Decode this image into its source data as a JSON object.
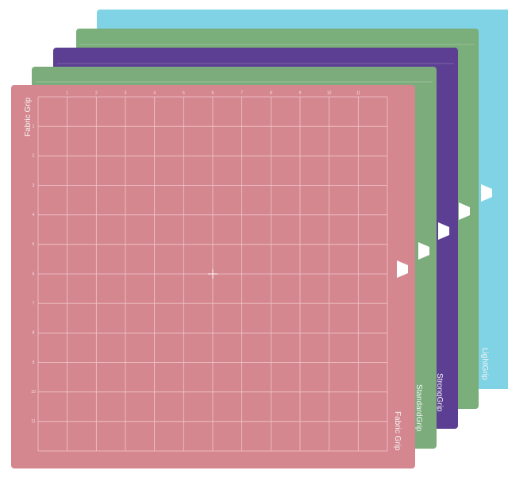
{
  "mats": [
    {
      "label": "LightGrip"
    },
    {
      "label": "StrongGrip"
    },
    {
      "label": "StandardGrip"
    }
  ],
  "front_mat": {
    "label_top": "Fabric Grip",
    "label_bottom": "Fabric Grip"
  },
  "ruler_numbers": [
    1,
    2,
    3,
    4,
    5,
    6,
    7,
    8,
    9,
    10,
    11
  ]
}
